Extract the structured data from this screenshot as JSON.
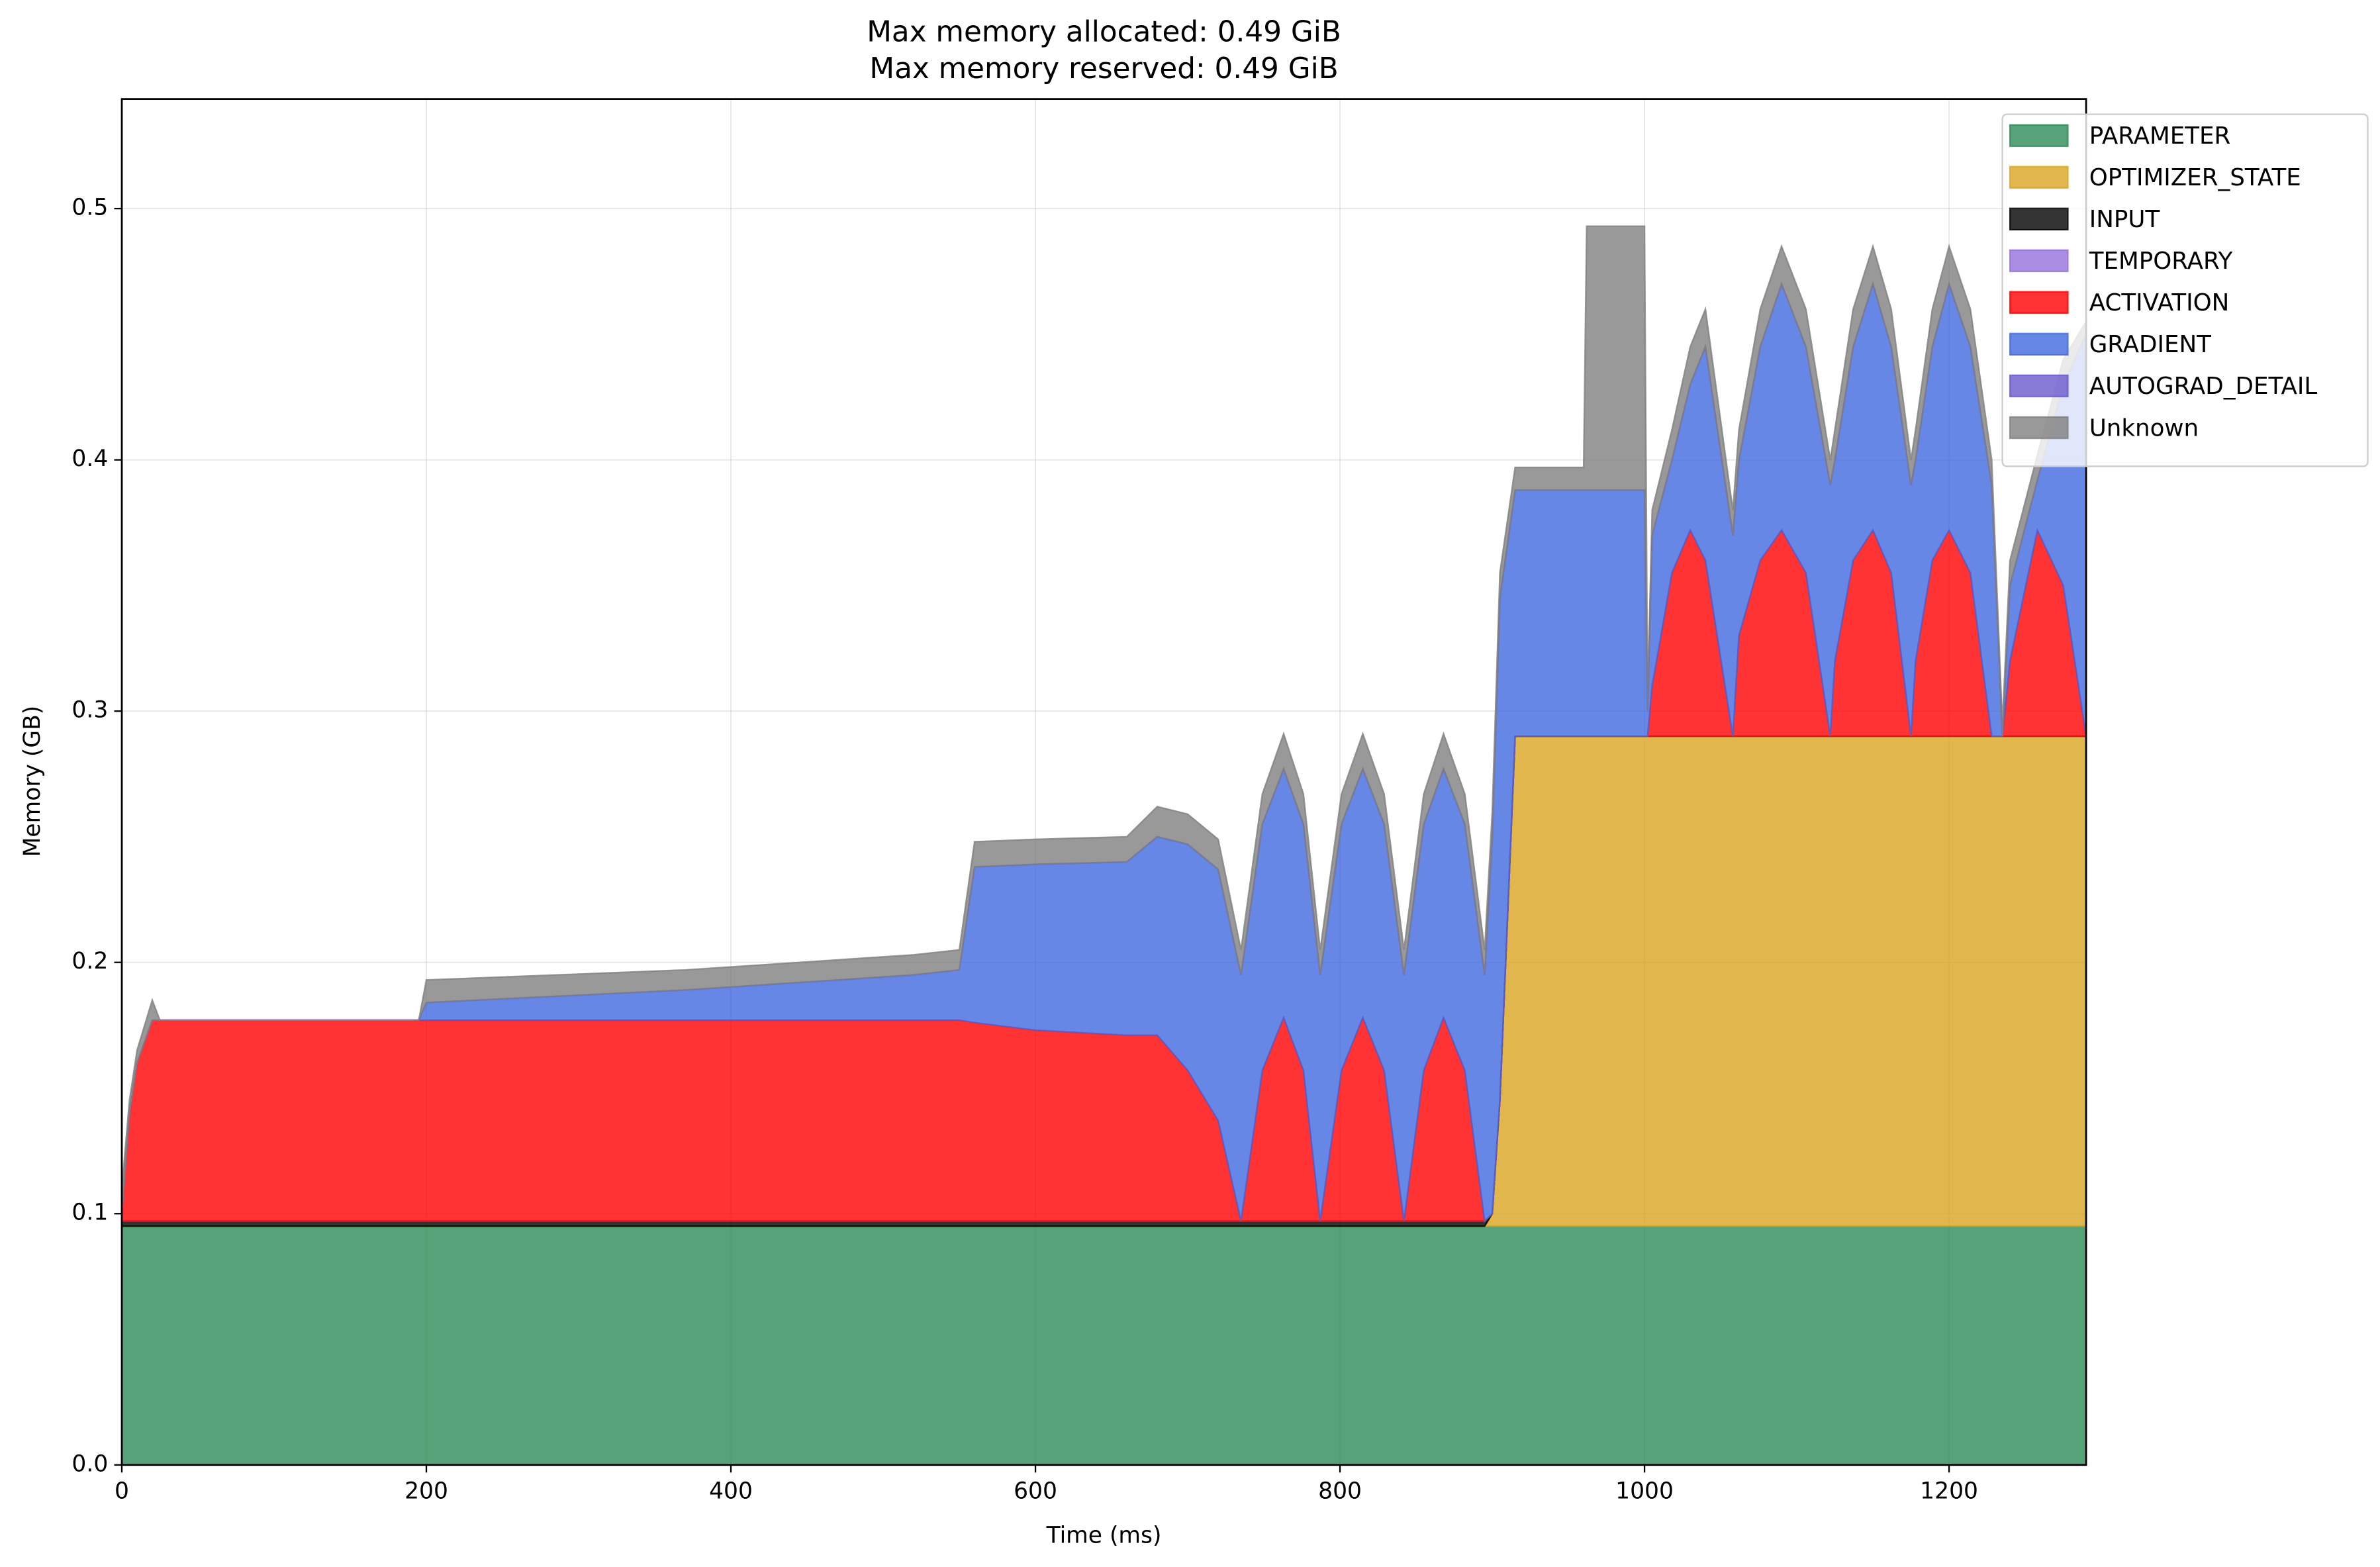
{
  "chart_data": {
    "type": "stackplot",
    "title": "Max memory allocated: 0.49 GiB",
    "subtitle": "Max memory reserved: 0.49 GiB",
    "x_label": "Time (ms)",
    "y_label": "Memory (GB)",
    "xlim": [
      0,
      1290
    ],
    "ylim": [
      0,
      0.5436
    ],
    "xticks": [
      0,
      200,
      400,
      600,
      800,
      1000,
      1200
    ],
    "yticks": [
      {
        "value": 0,
        "label": "0.0"
      },
      0.1,
      0.2,
      0.3,
      0.4,
      0.5
    ],
    "grid": true,
    "legend": "upper right",
    "alpha": 0.8,
    "x": [
      0,
      5,
      10,
      20,
      25,
      195,
      200,
      370,
      520,
      550,
      560,
      600,
      660,
      680,
      700,
      720,
      735,
      749,
      763,
      776,
      787,
      801,
      815,
      829,
      842,
      855,
      868,
      882,
      895,
      900,
      905,
      915,
      960,
      962,
      1000,
      1002,
      1005,
      1018,
      1030,
      1040,
      1058,
      1062,
      1076,
      1090,
      1106,
      1122,
      1125,
      1137,
      1150,
      1162,
      1175,
      1178,
      1189,
      1200,
      1214,
      1228,
      1235,
      1240,
      1258,
      1275,
      1290
    ],
    "series": [
      {
        "name": "PARAMETER",
        "color": "#2e8b57",
        "values": [
          0.095,
          0.095,
          0.095,
          0.095,
          0.095,
          0.095,
          0.095,
          0.095,
          0.095,
          0.095,
          0.095,
          0.095,
          0.095,
          0.095,
          0.095,
          0.095,
          0.095,
          0.095,
          0.095,
          0.095,
          0.095,
          0.095,
          0.095,
          0.095,
          0.095,
          0.095,
          0.095,
          0.095,
          0.095,
          0.095,
          0.095,
          0.095,
          0.095,
          0.095,
          0.095,
          0.095,
          0.095,
          0.095,
          0.095,
          0.095,
          0.095,
          0.095,
          0.095,
          0.095,
          0.095,
          0.095,
          0.095,
          0.095,
          0.095,
          0.095,
          0.095,
          0.095,
          0.095,
          0.095,
          0.095,
          0.095,
          0.095,
          0.095,
          0.095,
          0.095,
          0.095
        ]
      },
      {
        "name": "OPTIMIZER_STATE",
        "color": "#daa520",
        "values": [
          0,
          0,
          0,
          0,
          0,
          0,
          0,
          0,
          0,
          0,
          0,
          0,
          0,
          0,
          0,
          0,
          0,
          0,
          0,
          0,
          0,
          0,
          0,
          0,
          0,
          0,
          0,
          0,
          0,
          0.005,
          0.05,
          0.195,
          0.195,
          0.195,
          0.195,
          0.195,
          0.195,
          0.195,
          0.195,
          0.195,
          0.195,
          0.195,
          0.195,
          0.195,
          0.195,
          0.195,
          0.195,
          0.195,
          0.195,
          0.195,
          0.195,
          0.195,
          0.195,
          0.195,
          0.195,
          0.195,
          0.195,
          0.195,
          0.195,
          0.195,
          0.195
        ]
      },
      {
        "name": "INPUT",
        "color": "#000000",
        "values": [
          0.002,
          0.002,
          0.002,
          0.002,
          0.002,
          0.002,
          0.002,
          0.002,
          0.002,
          0.002,
          0.002,
          0.002,
          0.002,
          0.002,
          0.002,
          0.002,
          0.002,
          0.002,
          0.002,
          0.002,
          0.002,
          0.002,
          0.002,
          0.002,
          0.002,
          0.002,
          0.002,
          0.002,
          0.002,
          0,
          0,
          0,
          0,
          0,
          0,
          0,
          0,
          0,
          0,
          0,
          0,
          0,
          0,
          0,
          0,
          0,
          0,
          0,
          0,
          0,
          0,
          0,
          0,
          0,
          0,
          0,
          0,
          0,
          0,
          0,
          0
        ]
      },
      {
        "name": "TEMPORARY",
        "color": "#9370db",
        "values": [
          0,
          0,
          0,
          0,
          0,
          0,
          0,
          0,
          0,
          0,
          0,
          0,
          0,
          0,
          0,
          0,
          0,
          0,
          0,
          0,
          0,
          0,
          0,
          0,
          0,
          0,
          0,
          0,
          0,
          0,
          0,
          0,
          0,
          0,
          0,
          0,
          0,
          0,
          0,
          0,
          0,
          0,
          0,
          0,
          0,
          0,
          0,
          0,
          0,
          0,
          0,
          0,
          0,
          0,
          0,
          0,
          0,
          0,
          0,
          0,
          0
        ]
      },
      {
        "name": "ACTIVATION",
        "color": "#ff0000",
        "values": [
          0.003,
          0.043,
          0.063,
          0.08,
          0.08,
          0.08,
          0.08,
          0.08,
          0.08,
          0.08,
          0.079,
          0.076,
          0.074,
          0.074,
          0.06,
          0.04,
          0,
          0.06,
          0.081,
          0.06,
          0,
          0.06,
          0.081,
          0.06,
          0,
          0.06,
          0.081,
          0.06,
          0,
          0,
          0,
          0,
          0,
          0,
          0,
          0,
          0.02,
          0.065,
          0.082,
          0.07,
          0,
          0.04,
          0.07,
          0.082,
          0.065,
          0,
          0.03,
          0.07,
          0.082,
          0.065,
          0,
          0.03,
          0.07,
          0.082,
          0.065,
          0,
          0,
          0.03,
          0.082,
          0.06,
          0
        ]
      },
      {
        "name": "GRADIENT",
        "color": "#4169e1",
        "values": [
          0,
          0,
          0,
          0,
          0,
          0,
          0.007,
          0.012,
          0.018,
          0.02,
          0.062,
          0.066,
          0.069,
          0.079,
          0.09,
          0.1,
          0.098,
          0.098,
          0.099,
          0.098,
          0.098,
          0.098,
          0.099,
          0.098,
          0.098,
          0.098,
          0.099,
          0.098,
          0.098,
          0.15,
          0.2,
          0.098,
          0.098,
          0.098,
          0.098,
          0.01,
          0.06,
          0.045,
          0.058,
          0.085,
          0.08,
          0.07,
          0.085,
          0.098,
          0.09,
          0.1,
          0.08,
          0.085,
          0.098,
          0.09,
          0.1,
          0.08,
          0.085,
          0.098,
          0.09,
          0.1,
          0,
          0.03,
          0.02,
          0.08,
          0.16
        ]
      },
      {
        "name": "AUTOGRAD_DETAIL",
        "color": "#6a5acd",
        "values": [
          0,
          0,
          0,
          0,
          0,
          0,
          0,
          0,
          0,
          0,
          0,
          0,
          0,
          0,
          0,
          0,
          0,
          0,
          0,
          0,
          0,
          0,
          0,
          0,
          0,
          0,
          0,
          0,
          0,
          0,
          0,
          0,
          0,
          0,
          0,
          0,
          0,
          0,
          0,
          0,
          0,
          0,
          0,
          0,
          0,
          0,
          0,
          0,
          0,
          0,
          0,
          0,
          0,
          0,
          0,
          0,
          0,
          0,
          0,
          0,
          0
        ]
      },
      {
        "name": "Unknown",
        "color": "#808080",
        "values": [
          0.01,
          0.005,
          0.005,
          0.008,
          0,
          0,
          0.009,
          0.008,
          0.008,
          0.008,
          0.01,
          0.01,
          0.01,
          0.012,
          0.012,
          0.012,
          0.01,
          0.012,
          0.014,
          0.012,
          0.01,
          0.012,
          0.014,
          0.012,
          0.01,
          0.012,
          0.014,
          0.012,
          0.01,
          0.01,
          0.01,
          0.009,
          0.009,
          0.105,
          0.105,
          0.005,
          0.01,
          0.012,
          0.015,
          0.015,
          0.01,
          0.012,
          0.015,
          0.015,
          0.015,
          0.01,
          0.012,
          0.015,
          0.015,
          0.015,
          0.01,
          0.012,
          0.015,
          0.015,
          0.015,
          0.01,
          0.005,
          0.01,
          0.01,
          0.01,
          0.005
        ]
      }
    ]
  }
}
